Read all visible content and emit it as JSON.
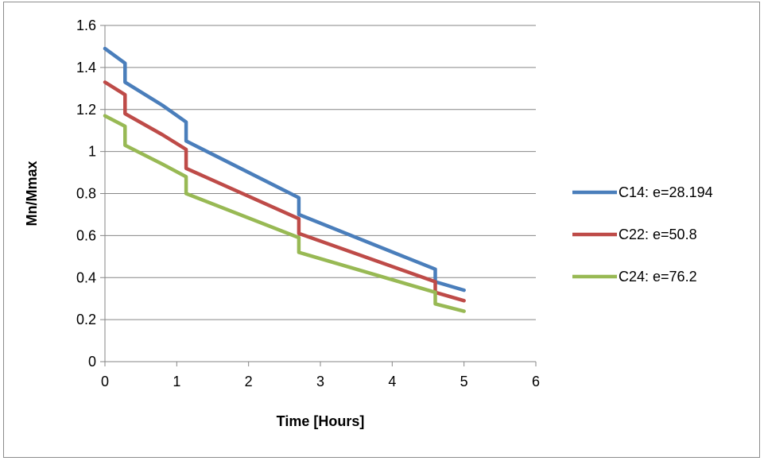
{
  "chart_data": {
    "type": "line",
    "title": "",
    "xlabel": "Time [Hours]",
    "ylabel": "Mn/Mmax",
    "xlim": [
      0,
      6
    ],
    "ylim": [
      0,
      1.6
    ],
    "xticks": [
      "0",
      "1",
      "2",
      "3",
      "4",
      "5",
      "6"
    ],
    "yticks": [
      "0",
      "0.2",
      "0.4",
      "0.6",
      "0.8",
      "1",
      "1.2",
      "1.4",
      "1.6"
    ],
    "grid": "horizontal",
    "legend_position": "right",
    "series": [
      {
        "name": "C14: e=28.194",
        "color": "#4a7ebb",
        "points": [
          [
            0,
            1.49
          ],
          [
            0.28,
            1.42
          ],
          [
            0.28,
            1.33
          ],
          [
            0.8,
            1.22
          ],
          [
            1.13,
            1.14
          ],
          [
            1.13,
            1.05
          ],
          [
            2.7,
            0.78
          ],
          [
            2.7,
            0.7
          ],
          [
            4.6,
            0.44
          ],
          [
            4.6,
            0.38
          ],
          [
            5.0,
            0.34
          ]
        ]
      },
      {
        "name": "C22: e=50.8",
        "color": "#be4b48",
        "points": [
          [
            0,
            1.33
          ],
          [
            0.28,
            1.27
          ],
          [
            0.28,
            1.18
          ],
          [
            0.8,
            1.08
          ],
          [
            1.13,
            1.01
          ],
          [
            1.13,
            0.92
          ],
          [
            2.7,
            0.68
          ],
          [
            2.7,
            0.61
          ],
          [
            4.6,
            0.38
          ],
          [
            4.6,
            0.33
          ],
          [
            5.0,
            0.29
          ]
        ]
      },
      {
        "name": "C24: e=76.2",
        "color": "#98b954",
        "points": [
          [
            0,
            1.17
          ],
          [
            0.28,
            1.12
          ],
          [
            0.28,
            1.03
          ],
          [
            0.8,
            0.94
          ],
          [
            1.13,
            0.88
          ],
          [
            1.13,
            0.8
          ],
          [
            2.7,
            0.59
          ],
          [
            2.7,
            0.52
          ],
          [
            4.6,
            0.33
          ],
          [
            4.6,
            0.275
          ],
          [
            5.0,
            0.24
          ]
        ]
      }
    ]
  }
}
